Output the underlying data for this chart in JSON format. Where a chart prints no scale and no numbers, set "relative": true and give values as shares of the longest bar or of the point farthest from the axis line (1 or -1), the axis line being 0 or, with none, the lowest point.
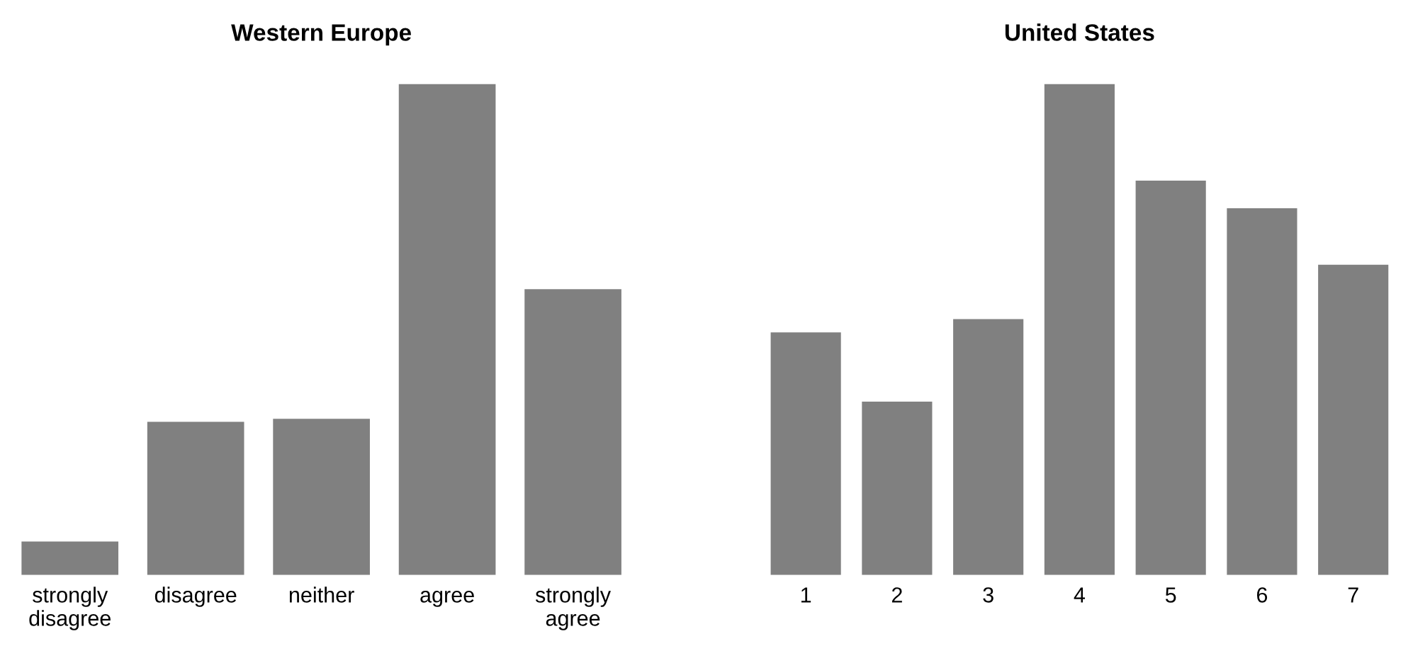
{
  "chart_data": [
    {
      "type": "bar",
      "title": "Western Europe",
      "categories": [
        "strongly\ndisagree",
        "disagree",
        "neither",
        "agree",
        "strongly\nagree"
      ],
      "relative": true,
      "color": "#808080",
      "values": [
        0.068,
        0.312,
        0.318,
        1,
        0.582
      ]
    },
    {
      "type": "bar",
      "title": "United States",
      "categories": [
        "1",
        "2",
        "3",
        "4",
        "5",
        "6",
        "7"
      ],
      "relative": true,
      "color": "#808080",
      "values": [
        0.494,
        0.353,
        0.521,
        1,
        0.803,
        0.747,
        0.632
      ]
    }
  ]
}
